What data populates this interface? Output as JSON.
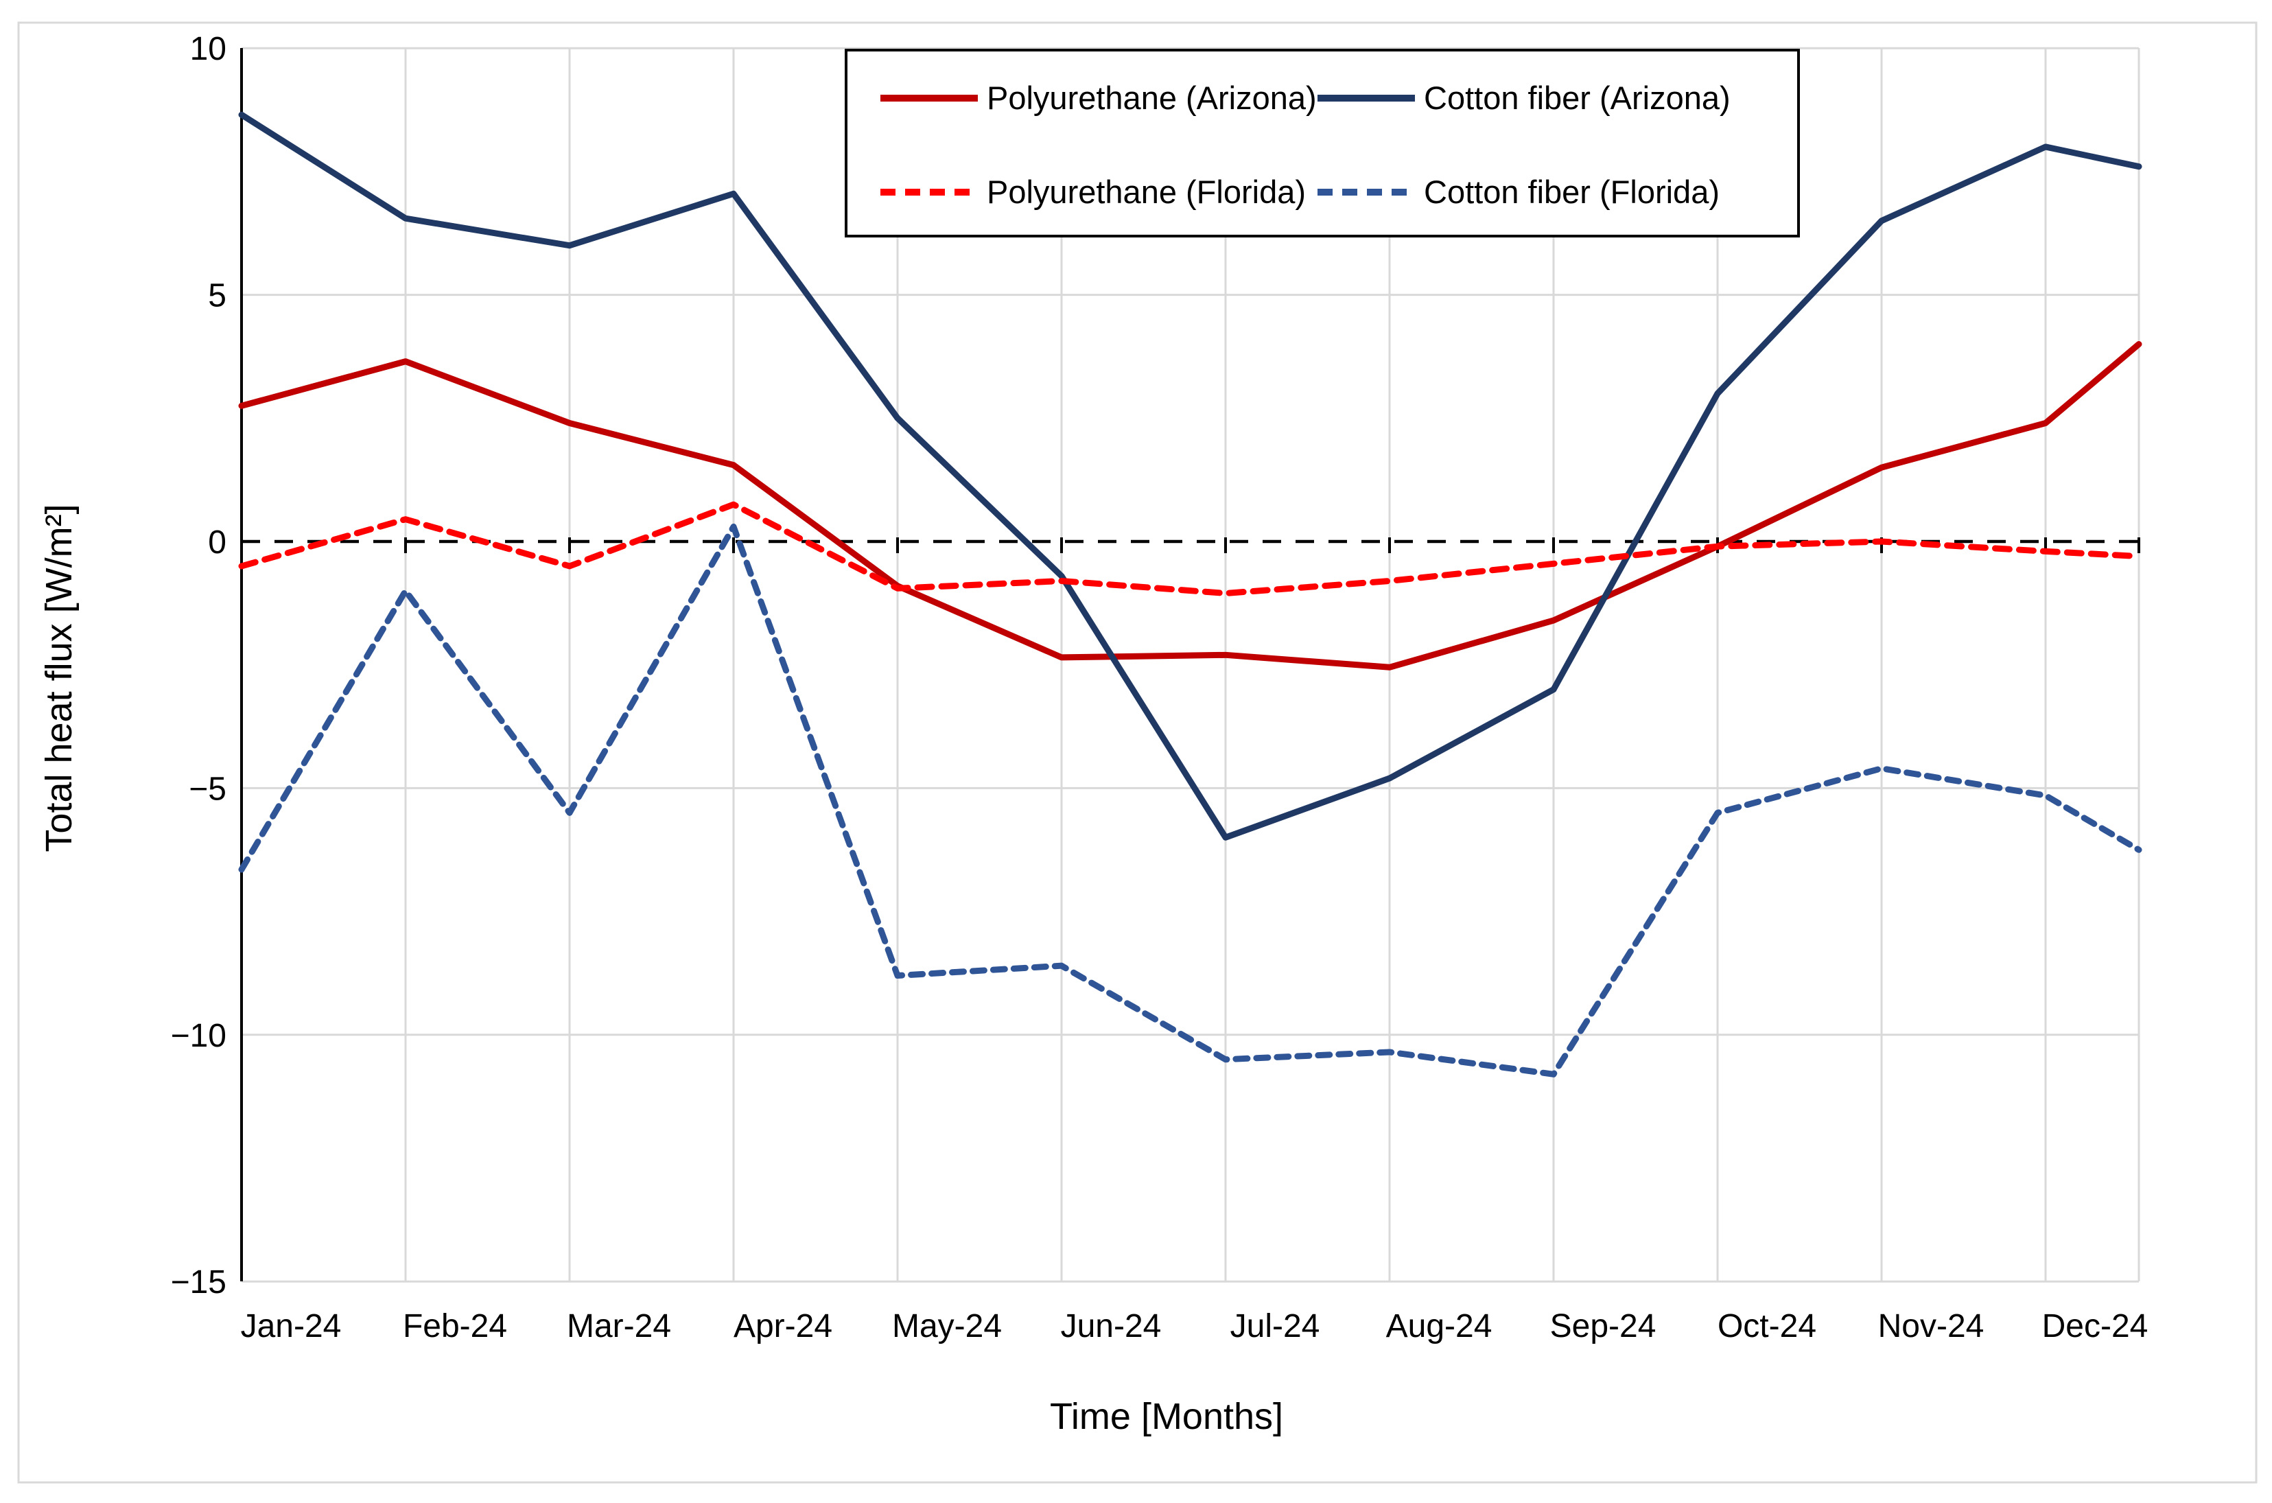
{
  "chart_data": {
    "type": "line",
    "title": "",
    "xlabel": "Time [Months]",
    "ylabel": "Total heat flux [W/m²]",
    "categories": [
      "Jan-24",
      "Feb-24",
      "Mar-24",
      "Apr-24",
      "May-24",
      "Jun-24",
      "Jul-24",
      "Aug-24",
      "Sep-24",
      "Oct-24",
      "Nov-24",
      "Dec-24"
    ],
    "ylim": [
      -15,
      10
    ],
    "yticks": [
      10,
      5,
      0,
      -5,
      -10,
      -15
    ],
    "ytick_labels": [
      "10",
      "5",
      "0",
      "−5",
      "−10",
      "−15"
    ],
    "grid": true,
    "zero_axis_style": "dashed-black-with-ticks",
    "legend_position": "top-center",
    "layout_hints": {
      "points_start_at_left_spine": true,
      "extra_endpoint_at_right_plot_edge": true,
      "x_labels_between_ticks": true
    },
    "series": [
      {
        "name": "Polyurethane (Arizona)",
        "color": "#C00000",
        "dash": "solid",
        "values": [
          2.75,
          3.65,
          2.4,
          1.55,
          -0.9,
          -2.35,
          -2.3,
          -2.55,
          -1.6,
          -0.1,
          1.5,
          2.4
        ],
        "end_value": 4.0
      },
      {
        "name": "Cotton fiber (Arizona)",
        "color": "#1F3864",
        "dash": "solid",
        "values": [
          8.65,
          6.55,
          6.0,
          7.05,
          2.5,
          -0.7,
          -6.0,
          -4.8,
          -3.0,
          3.0,
          6.5,
          8.0
        ],
        "end_value": 7.6
      },
      {
        "name": "Polyurethane (Florida)",
        "color": "#FF0000",
        "dash": "dashed",
        "values": [
          -0.5,
          0.45,
          -0.5,
          0.75,
          -0.95,
          -0.8,
          -1.05,
          -0.8,
          -0.45,
          -0.1,
          0.0,
          -0.2
        ],
        "end_value": -0.3
      },
      {
        "name": "Cotton fiber (Florida)",
        "color": "#2F5597",
        "dash": "dashed",
        "values": [
          -6.65,
          -1.0,
          -5.5,
          0.3,
          -8.8,
          -8.6,
          -10.5,
          -10.35,
          -10.8,
          -5.5,
          -4.6,
          -5.15
        ],
        "end_value": -6.25
      }
    ],
    "colors": {
      "gridline": "#D9D9D9",
      "spine": "#000000",
      "zero_line": "#000000",
      "figure_border": "#D9D9D9",
      "background": "#FFFFFF"
    }
  }
}
